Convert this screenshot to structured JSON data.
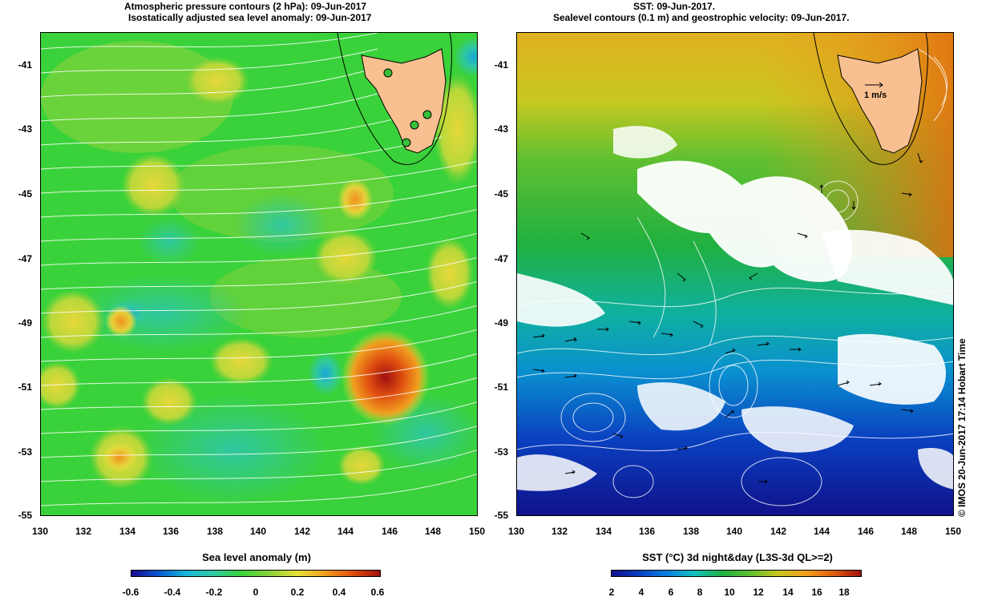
{
  "left_panel": {
    "title_line1": "Atmospheric pressure contours (2 hPa): 09-Jun-2017",
    "title_line2": "Isostatically adjusted sea level anomaly: 09-Jun-2017",
    "y_ticks": [
      "-41",
      "-43",
      "-45",
      "-47",
      "-49",
      "-51",
      "-53",
      "-55"
    ],
    "x_ticks": [
      "130",
      "132",
      "134",
      "136",
      "138",
      "140",
      "142",
      "144",
      "146",
      "148",
      "150"
    ],
    "colorbar_title": "Sea level anomaly (m)",
    "colorbar_ticks": [
      "-0.6",
      "-0.4",
      "-0.2",
      "0",
      "0.2",
      "0.4",
      "0.6"
    ],
    "colorbar_colors": [
      "#1a0a8c",
      "#0a5ad0",
      "#17b8d8",
      "#30c8a0",
      "#3ad23a",
      "#8ad23a",
      "#e6e23a",
      "#f0a020",
      "#e05010",
      "#a01010"
    ]
  },
  "right_panel": {
    "title_line1": "SST: 09-Jun-2017.",
    "title_line2": "Sealevel contours (0.1 m) and geostrophic velocity: 09-Jun-2017.",
    "y_ticks": [
      "-41",
      "-43",
      "-45",
      "-47",
      "-49",
      "-51",
      "-53",
      "-55"
    ],
    "x_ticks": [
      "130",
      "132",
      "134",
      "136",
      "138",
      "140",
      "142",
      "144",
      "146",
      "148",
      "150"
    ],
    "scale_label": "1 m/s",
    "colorbar_title": "SST (°C) 3d night&day (L3S-3d QL>=2)",
    "colorbar_ticks": [
      "2",
      "4",
      "6",
      "8",
      "10",
      "12",
      "14",
      "16",
      "18"
    ],
    "colorbar_colors": [
      "#10108a",
      "#0a40c0",
      "#0a80e0",
      "#10c0c0",
      "#20b040",
      "#60c030",
      "#c8c820",
      "#f0a020",
      "#e06010",
      "#a01010"
    ]
  },
  "side_note": "© IMOS 20-Jun-2017 17:14 Hobart Time",
  "colors": {
    "land": "#f8c090",
    "site_marker": "#38c038"
  }
}
